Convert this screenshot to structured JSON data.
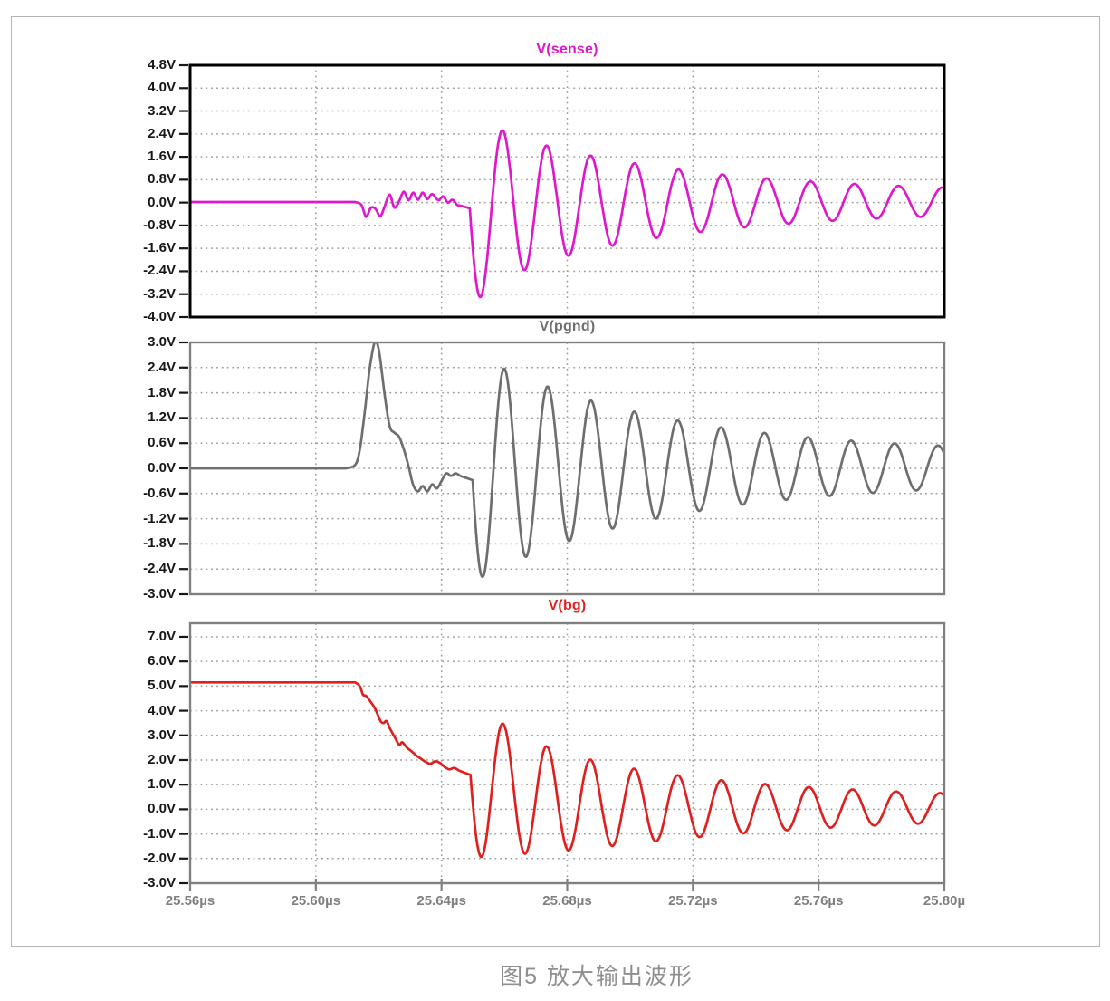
{
  "figure": {
    "caption": "图5 放大输出波形"
  },
  "chart_data": {
    "type": "line",
    "description": "Three stacked oscilloscope/SPICE transient waveform panes sharing one time axis; damped ringing after a switching event near 25.65µs.",
    "x_axis": {
      "unit": "µs",
      "xlim": [
        25.56,
        25.8
      ],
      "grid_step": 0.04,
      "ticks": [
        {
          "v": 25.56,
          "label": "25.56µs"
        },
        {
          "v": 25.6,
          "label": "25.60µs"
        },
        {
          "v": 25.64,
          "label": "25.64µs"
        },
        {
          "v": 25.68,
          "label": "25.68µs"
        },
        {
          "v": 25.72,
          "label": "25.72µs"
        },
        {
          "v": 25.76,
          "label": "25.76µs"
        },
        {
          "v": 25.8,
          "label": "25.80µ"
        }
      ]
    },
    "plots": [
      {
        "id": "sense",
        "title": "V(sense)",
        "color": "#e018cc",
        "title_color": "#e018cc",
        "border_color": "#000000",
        "border_width": 3,
        "ylim": [
          -4.0,
          4.8
        ],
        "yticks": [
          {
            "v": 4.8,
            "label": "4.8V"
          },
          {
            "v": 4.0,
            "label": "4.0V"
          },
          {
            "v": 3.2,
            "label": "3.2V"
          },
          {
            "v": 2.4,
            "label": "2.4V"
          },
          {
            "v": 1.6,
            "label": "1.6V"
          },
          {
            "v": 0.8,
            "label": "0.8V"
          },
          {
            "v": 0.0,
            "label": "0.0V"
          },
          {
            "v": -0.8,
            "label": "-0.8V"
          },
          {
            "v": -1.6,
            "label": "-1.6V"
          },
          {
            "v": -2.4,
            "label": "-2.4V"
          },
          {
            "v": -3.2,
            "label": "-3.2V"
          },
          {
            "v": -4.0,
            "label": "-4.0V"
          }
        ],
        "key_points": {
          "baseline_v": 0.0,
          "disturbance_start_t": 25.614,
          "first_min": {
            "t": 25.653,
            "v": -3.3
          },
          "first_max": {
            "t": 25.66,
            "v": 2.6
          },
          "second_min": {
            "t": 25.667,
            "v": -2.4
          },
          "ring_period_us": 0.014,
          "end_amplitude_v": 0.45
        },
        "segments": [
          {
            "type": "flat",
            "t0": 25.56,
            "t1": 25.6125,
            "v": 0.02
          },
          {
            "type": "points",
            "pts": [
              [
                25.6125,
                0.02
              ],
              [
                25.6145,
                -0.08
              ],
              [
                25.616,
                -0.5
              ],
              [
                25.6175,
                -0.18
              ],
              [
                25.619,
                -0.22
              ],
              [
                25.6205,
                -0.48
              ],
              [
                25.622,
                -0.1
              ],
              [
                25.6235,
                0.28
              ],
              [
                25.625,
                -0.18
              ],
              [
                25.6265,
                0.05
              ],
              [
                25.628,
                0.38
              ],
              [
                25.6295,
                0.08
              ],
              [
                25.631,
                0.35
              ],
              [
                25.6325,
                0.1
              ],
              [
                25.634,
                0.35
              ],
              [
                25.6355,
                0.12
              ],
              [
                25.637,
                0.3
              ],
              [
                25.639,
                0.08
              ],
              [
                25.6405,
                0.22
              ],
              [
                25.642,
                0.0
              ],
              [
                25.6435,
                0.1
              ],
              [
                25.645,
                -0.08
              ],
              [
                25.6465,
                -0.12
              ],
              [
                25.649,
                -0.2
              ]
            ]
          },
          {
            "type": "ring",
            "t0": 25.649,
            "t1": 25.8,
            "T0": 0.014,
            "Ts": 0,
            "phase0": 0.01,
            "mid": {
              "base": 0.03,
              "amp": -0.2,
              "k": 40
            },
            "env": {
              "a1": 2.6,
              "k1": 17,
              "a0": 0.3,
              "af": 0.65,
              "kf": 140
            }
          }
        ]
      },
      {
        "id": "pgnd",
        "title": "V(pgnd)",
        "color": "#6e6e6e",
        "title_color": "#6e6e6e",
        "border_color": "#808080",
        "border_width": 2.4,
        "ylim": [
          -3.0,
          3.0
        ],
        "yticks": [
          {
            "v": 3.0,
            "label": "3.0V"
          },
          {
            "v": 2.4,
            "label": "2.4V"
          },
          {
            "v": 1.8,
            "label": "1.8V"
          },
          {
            "v": 1.2,
            "label": "1.2V"
          },
          {
            "v": 0.6,
            "label": "0.6V"
          },
          {
            "v": 0.0,
            "label": "0.0V"
          },
          {
            "v": -0.6,
            "label": "-0.6V"
          },
          {
            "v": -1.2,
            "label": "-1.2V"
          },
          {
            "v": -1.8,
            "label": "-1.8V"
          },
          {
            "v": -2.4,
            "label": "-2.4V"
          },
          {
            "v": -3.0,
            "label": "-3.0V"
          }
        ],
        "key_points": {
          "baseline_v": 0.0,
          "spike_max": {
            "t": 25.619,
            "v": 3.0
          },
          "pre_ring_dip_v": -0.55,
          "first_min": {
            "t": 25.6534,
            "v": -2.3
          },
          "first_max": {
            "t": 25.661,
            "v": 2.55
          },
          "second_min": {
            "t": 25.667,
            "v": -2.6
          },
          "ring_period_us": 0.0138,
          "end_amplitude_v": 0.4
        },
        "segments": [
          {
            "type": "flat",
            "t0": 25.56,
            "t1": 25.6095,
            "v": 0.0
          },
          {
            "type": "points",
            "pts": [
              [
                25.6095,
                0.0
              ],
              [
                25.6125,
                0.08
              ],
              [
                25.614,
                0.45
              ],
              [
                25.6155,
                1.3
              ],
              [
                25.617,
                2.3
              ],
              [
                25.6185,
                2.95
              ],
              [
                25.6195,
                2.98
              ],
              [
                25.6205,
                2.6
              ],
              [
                25.622,
                1.7
              ],
              [
                25.6235,
                1.0
              ],
              [
                25.625,
                0.85
              ],
              [
                25.6265,
                0.75
              ],
              [
                25.628,
                0.45
              ],
              [
                25.6295,
                0.05
              ],
              [
                25.631,
                -0.4
              ],
              [
                25.6325,
                -0.55
              ],
              [
                25.634,
                -0.42
              ],
              [
                25.6355,
                -0.55
              ],
              [
                25.637,
                -0.38
              ],
              [
                25.6385,
                -0.48
              ],
              [
                25.64,
                -0.3
              ],
              [
                25.6415,
                -0.12
              ],
              [
                25.643,
                -0.18
              ],
              [
                25.6445,
                -0.12
              ],
              [
                25.646,
                -0.18
              ],
              [
                25.6475,
                -0.22
              ],
              [
                25.6499,
                -0.28
              ]
            ]
          },
          {
            "type": "ring",
            "t0": 25.6499,
            "t1": 25.8,
            "T0": 0.0138,
            "Ts": 0,
            "phase0": 0.11,
            "mid": {
              "base": 0.02,
              "amp": 0,
              "k": 1
            },
            "env": {
              "a1": 2.4,
              "k1": 17,
              "a0": 0.33,
              "af": 0,
              "kf": 1
            }
          }
        ]
      },
      {
        "id": "bg",
        "title": "V(bg)",
        "color": "#e01f1f",
        "title_color": "#e01f1f",
        "border_color": "#808080",
        "border_width": 2.4,
        "ylim": [
          -3.0,
          7.55
        ],
        "yticks": [
          {
            "v": 7.0,
            "label": "7.0V"
          },
          {
            "v": 6.0,
            "label": "6.0V"
          },
          {
            "v": 5.0,
            "label": "5.0V"
          },
          {
            "v": 4.0,
            "label": "4.0V"
          },
          {
            "v": 3.0,
            "label": "3.0V"
          },
          {
            "v": 2.0,
            "label": "2.0V"
          },
          {
            "v": 1.0,
            "label": "1.0V"
          },
          {
            "v": 0.0,
            "label": "0.0V"
          },
          {
            "v": -1.0,
            "label": "-1.0V"
          },
          {
            "v": -2.0,
            "label": "-2.0V"
          },
          {
            "v": -3.0,
            "label": "-3.0V"
          }
        ],
        "key_points": {
          "baseline_v": 5.15,
          "fall_start_t": 25.613,
          "stair_fall_to_v": 1.4,
          "first_min": {
            "t": 25.6527,
            "v": -1.8
          },
          "first_max": {
            "t": 25.66,
            "v": 3.45
          },
          "second_max": {
            "t": 25.672,
            "v": 2.4
          },
          "ring_period_us": 0.0139,
          "end_amplitude_v": 0.4
        },
        "segments": [
          {
            "type": "flat",
            "t0": 25.56,
            "t1": 25.6125,
            "v": 5.15
          },
          {
            "type": "points",
            "pts": [
              [
                25.6125,
                5.15
              ],
              [
                25.614,
                5.0
              ],
              [
                25.615,
                4.65
              ],
              [
                25.616,
                4.6
              ],
              [
                25.6175,
                4.35
              ],
              [
                25.619,
                4.05
              ],
              [
                25.6205,
                3.6
              ],
              [
                25.6215,
                3.5
              ],
              [
                25.6225,
                3.58
              ],
              [
                25.6235,
                3.3
              ],
              [
                25.625,
                2.95
              ],
              [
                25.6265,
                2.62
              ],
              [
                25.6275,
                2.72
              ],
              [
                25.629,
                2.5
              ],
              [
                25.6305,
                2.35
              ],
              [
                25.632,
                2.18
              ],
              [
                25.6335,
                2.05
              ],
              [
                25.635,
                1.92
              ],
              [
                25.6365,
                1.85
              ],
              [
                25.638,
                1.95
              ],
              [
                25.6395,
                1.88
              ],
              [
                25.641,
                1.72
              ],
              [
                25.6425,
                1.62
              ],
              [
                25.644,
                1.68
              ],
              [
                25.6455,
                1.58
              ],
              [
                25.647,
                1.5
              ],
              [
                25.6492,
                1.4
              ]
            ]
          },
          {
            "type": "ring",
            "t0": 25.6492,
            "t1": 25.8,
            "T0": 0.0139,
            "Ts": 0,
            "phase0": 0,
            "mid": {
              "base": 0.05,
              "amp": 1.35,
              "k": 55
            },
            "env": {
              "a1": 2.6,
              "k1": 15,
              "a0": 0.33,
              "af": 0.5,
              "kf": 150
            }
          }
        ]
      }
    ],
    "style": {
      "grid_color": "#9c9c9c",
      "y_label_color": "#161616",
      "x_label_color": "#7f7f7f",
      "frame_color": "#b3b3b3",
      "background": "#ffffff"
    }
  }
}
